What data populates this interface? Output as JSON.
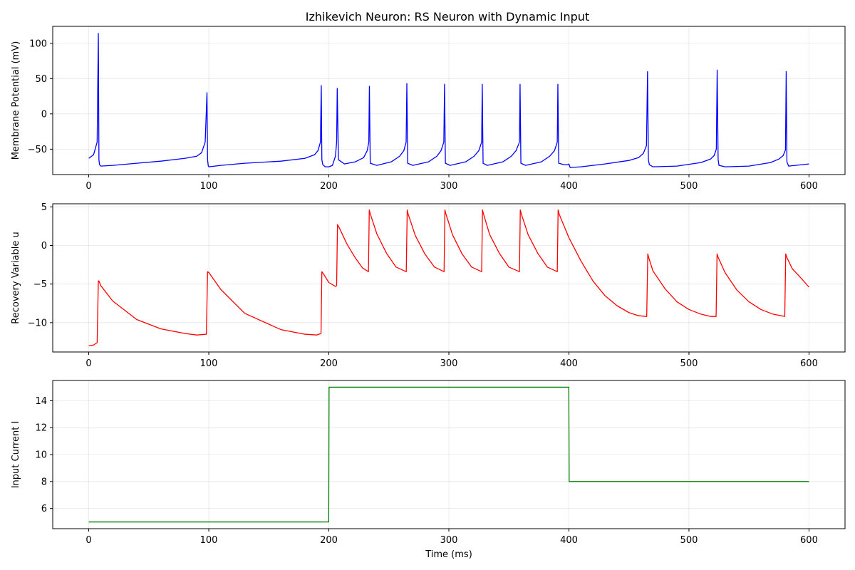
{
  "figure_title": "Izhikevich Neuron: RS Neuron with Dynamic Input",
  "chart_data": [
    {
      "type": "line",
      "id": "membrane",
      "title": "Izhikevich Neuron: RS Neuron with Dynamic Input",
      "xlabel": "",
      "ylabel": "Membrane Potential (mV)",
      "color": "#0000ff",
      "grid": true,
      "xlim": [
        -30,
        630
      ],
      "ylim": [
        -86,
        124
      ],
      "xticks": [
        0,
        100,
        200,
        300,
        400,
        500,
        600
      ],
      "xtick_labels": [
        "0",
        "100",
        "200",
        "300",
        "400",
        "500",
        "600"
      ],
      "yticks": [
        -50,
        0,
        50,
        100
      ],
      "ytick_labels": [
        "−50",
        "0",
        "50",
        "100"
      ],
      "series": [
        {
          "x": [
            0,
            4,
            7,
            8,
            8.5,
            9,
            10,
            20,
            40,
            60,
            80,
            90,
            94,
            97,
            98.5,
            99,
            99.5,
            100,
            110,
            130,
            160,
            180,
            188,
            191,
            193,
            193.7,
            194.2,
            195,
            197,
            200,
            203,
            205.5,
            206.5,
            207,
            208,
            213,
            222,
            229,
            232,
            233.3,
            233.8,
            234.5,
            240,
            252,
            259,
            262.5,
            264.4,
            265,
            265.7,
            270,
            283,
            290,
            293.5,
            295.8,
            296.4,
            297.1,
            301,
            314,
            321,
            325,
            327.3,
            327.8,
            328.5,
            332,
            345,
            352,
            356,
            358.8,
            359.3,
            360,
            364,
            377,
            384,
            388,
            390.3,
            390.8,
            391.5,
            396,
            399,
            400,
            401,
            410,
            430,
            450,
            458,
            462,
            464.6,
            465.5,
            466.2,
            467,
            470,
            490,
            510,
            518,
            521,
            522.8,
            523.5,
            524.3,
            525,
            530,
            550,
            568,
            575,
            578.5,
            580.4,
            581,
            581.6,
            583,
            600
          ],
          "y": [
            -63,
            -58,
            -40,
            114,
            -65,
            -72,
            -74,
            -73,
            -70,
            -67,
            -63,
            -60,
            -55,
            -40,
            30,
            -65,
            -73,
            -75,
            -73,
            -70,
            -67,
            -63,
            -58,
            -52,
            -40,
            40,
            -65,
            -72,
            -75,
            -75,
            -73,
            -60,
            -40,
            36,
            -65,
            -71,
            -68,
            -62,
            -52,
            -40,
            39,
            -70,
            -73,
            -68,
            -60,
            -52,
            -40,
            43,
            -70,
            -73,
            -68,
            -60,
            -52,
            -40,
            42,
            -70,
            -73,
            -68,
            -60,
            -52,
            -40,
            42,
            -70,
            -73,
            -68,
            -60,
            -52,
            -40,
            42,
            -70,
            -73,
            -68,
            -60,
            -52,
            -40,
            42,
            -70,
            -72,
            -72,
            -71,
            -76,
            -75,
            -71,
            -66,
            -62,
            -56,
            -45,
            60,
            -65,
            -72,
            -75,
            -74,
            -69,
            -64,
            -59,
            -50,
            62,
            -65,
            -73,
            -75,
            -74,
            -69,
            -64,
            -59,
            -51,
            60,
            -68,
            -74,
            -71
          ]
        }
      ]
    },
    {
      "type": "line",
      "id": "recovery",
      "xlabel": "",
      "ylabel": "Recovery Variable u",
      "color": "#ff0000",
      "grid": true,
      "xlim": [
        -30,
        630
      ],
      "ylim": [
        -13.8,
        5.4
      ],
      "xticks": [
        0,
        100,
        200,
        300,
        400,
        500,
        600
      ],
      "xtick_labels": [
        "0",
        "100",
        "200",
        "300",
        "400",
        "500",
        "600"
      ],
      "yticks": [
        -10,
        -5,
        0,
        5
      ],
      "ytick_labels": [
        "−10",
        "−5",
        "0",
        "5"
      ],
      "series": [
        {
          "x": [
            0,
            4,
            7,
            8,
            8.5,
            10,
            20,
            40,
            60,
            80,
            90,
            98,
            99,
            100,
            110,
            130,
            160,
            180,
            190,
            193.5,
            194.2,
            196,
            200,
            205.5,
            206.5,
            207.2,
            209,
            215,
            222,
            228,
            233,
            233.7,
            234.5,
            240,
            248,
            256,
            264.5,
            265.3,
            266,
            272,
            280,
            288,
            296,
            296.7,
            297.5,
            303,
            311,
            319,
            327.3,
            328,
            328.8,
            334,
            342,
            350,
            358.8,
            359.5,
            360.3,
            366,
            374,
            382,
            390.3,
            391,
            392,
            400,
            410,
            420,
            430,
            440,
            450,
            458,
            464.8,
            465.7,
            466.5,
            470,
            480,
            490,
            500,
            510,
            518,
            522.6,
            523.4,
            524.2,
            530,
            540,
            550,
            560,
            570,
            579.8,
            580.6,
            581.4,
            586,
            592,
            600
          ],
          "y": [
            -13,
            -12.9,
            -12.6,
            -4.6,
            -4.6,
            -5.2,
            -7.2,
            -9.6,
            -10.8,
            -11.4,
            -11.6,
            -11.5,
            -3.4,
            -3.5,
            -5.7,
            -8.8,
            -10.9,
            -11.5,
            -11.6,
            -11.4,
            -3.4,
            -3.8,
            -4.8,
            -5.3,
            -5.2,
            2.7,
            2.2,
            0.2,
            -1.6,
            -2.9,
            -3.4,
            4.6,
            4.1,
            1.5,
            -1.0,
            -2.8,
            -3.4,
            4.6,
            4.1,
            1.3,
            -1.1,
            -2.8,
            -3.4,
            4.6,
            4.1,
            1.4,
            -1.1,
            -2.8,
            -3.4,
            4.6,
            4.1,
            1.4,
            -1.0,
            -2.8,
            -3.4,
            4.6,
            4.1,
            1.4,
            -1.0,
            -2.8,
            -3.4,
            4.6,
            4.0,
            1.0,
            -2.0,
            -4.6,
            -6.5,
            -7.8,
            -8.7,
            -9.1,
            -9.2,
            -1.1,
            -1.6,
            -3.3,
            -5.6,
            -7.3,
            -8.3,
            -8.9,
            -9.2,
            -9.2,
            -1.1,
            -1.5,
            -3.5,
            -5.8,
            -7.3,
            -8.3,
            -8.9,
            -9.2,
            -1.1,
            -1.5,
            -3.0,
            -4.0,
            -5.4
          ]
        }
      ]
    },
    {
      "type": "line",
      "id": "input",
      "xlabel": "Time (ms)",
      "ylabel": "Input Current I",
      "color": "#008000",
      "grid": true,
      "xlim": [
        -30,
        630
      ],
      "ylim": [
        4.5,
        15.5
      ],
      "xticks": [
        0,
        100,
        200,
        300,
        400,
        500,
        600
      ],
      "xtick_labels": [
        "0",
        "100",
        "200",
        "300",
        "400",
        "500",
        "600"
      ],
      "yticks": [
        6,
        8,
        10,
        12,
        14
      ],
      "ytick_labels": [
        "6",
        "8",
        "10",
        "12",
        "14"
      ],
      "series": [
        {
          "x": [
            0,
            199.9,
            200.2,
            399.9,
            400.2,
            600
          ],
          "y": [
            5,
            5,
            15,
            15,
            8,
            8
          ]
        }
      ]
    }
  ]
}
